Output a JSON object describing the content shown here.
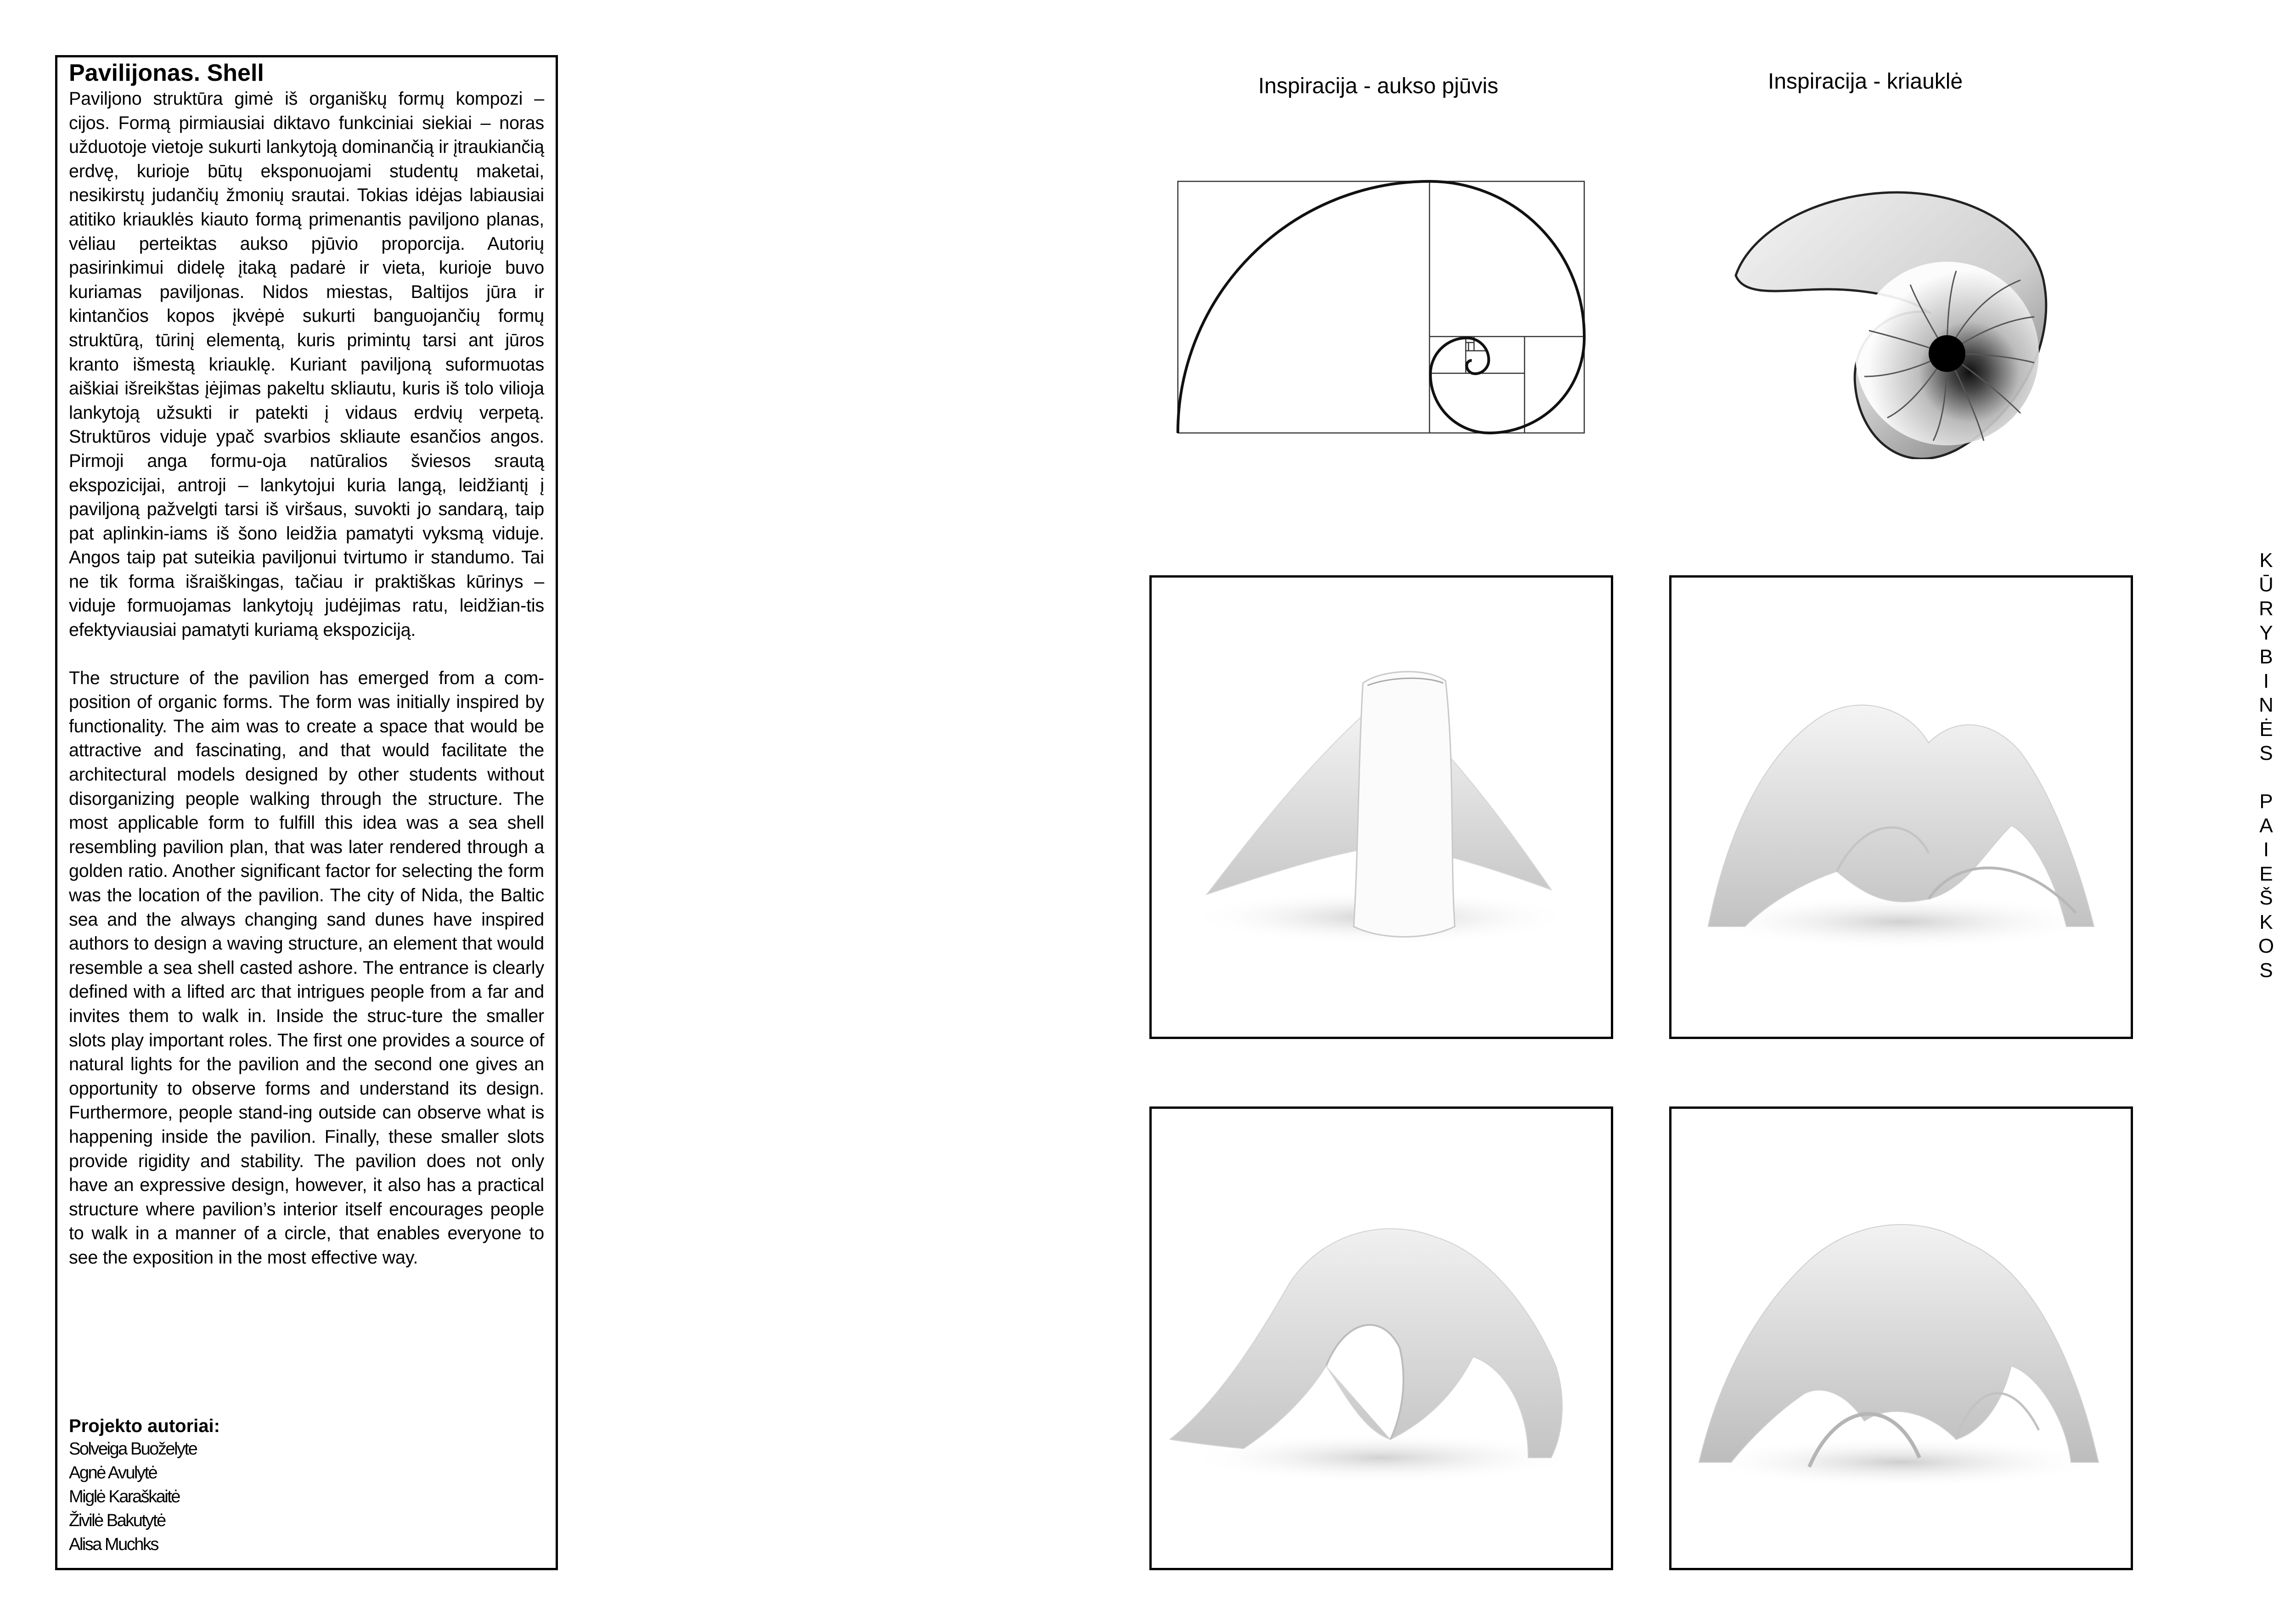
{
  "left_panel": {
    "title": "Pavilijonas. Shell",
    "paragraph_lt": "Paviljono struktūra gimė iš organiškų formų kompozi – cijos. Formą pirmiausiai diktavo funkciniai siekiai – noras užduotoje vietoje sukurti lankytoją dominančią ir įtraukiančią erdvę, kurioje būtų eksponuojami studentų maketai, nesikirstų judančių žmonių srautai. Tokias idėjas labiausiai atitiko kriauklės kiauto formą primenantis paviljono planas, vėliau perteiktas aukso pjūvio proporcija. Autorių pasirinkimui didelę įtaką padarė ir vieta, kurioje buvo kuriamas paviljonas. Nidos miestas, Baltijos jūra ir kintančios kopos įkvėpė sukurti banguojančių formų struktūrą, tūrinį elementą, kuris primintų tarsi ant jūros kranto išmestą kriauklę. Kuriant paviljoną suformuotas aiškiai išreikštas įėjimas pakeltu skliautu, kuris iš tolo vilioja lankytoją užsukti ir patekti į vidaus erdvių verpetą. Struktūros viduje ypač svarbios skliaute esančios angos. Pirmoji anga formu-oja natūralios šviesos srautą ekspozicijai, antroji – lankytojui kuria langą, leidžiantį į paviljoną pažvelgti tarsi iš viršaus, suvokti jo sandarą, taip pat aplinkin-iams iš šono leidžia pamatyti vyksmą viduje. Angos taip pat suteikia paviljonui tvirtumo ir standumo. Tai ne tik forma išraiškingas, tačiau ir praktiškas kūrinys – viduje formuojamas lankytojų judėjimas ratu, leidžian-tis efektyviausiai pamatyti kuriamą ekspoziciją.",
    "paragraph_en": "The structure of the pavilion has emerged from a com-position of organic forms. The form was initially inspired by functionality. The aim was to create a space that would be attractive and fascinating, and that would facilitate the architectural models designed by other students without disorganizing people walking through the structure. The most applicable form to fulfill this idea was a sea shell resembling pavilion plan, that was later rendered through a golden ratio. Another significant factor for selecting the form was the location of the pavilion. The city of Nida, the Baltic sea and the always changing sand dunes have inspired authors to design a waving structure, an element that would resemble a sea shell casted ashore. The entrance is clearly defined with a lifted arc that intrigues people from a far and invites them to walk in. Inside the struc-ture the smaller slots play important roles. The first one provides a source of natural lights for the pavilion and the second one gives an opportunity to observe forms and understand its design. Furthermore, people stand-ing outside can observe what is happening inside the pavilion. Finally, these smaller slots provide rigidity and stability. The pavilion does not only have an expressive design, however, it also has a practical structure where pavilion’s interior itself encourages people to walk in a manner of a circle, that enables everyone to see the exposition in the most effective way.",
    "authors_label": "Projekto autoriai:",
    "authors": [
      "Solveiga Buoželyte",
      "Agnė Avulytė",
      "Miglė Karaškaitė",
      "Živilė Bakutytė",
      "Alisa Muchks"
    ]
  },
  "figures": {
    "golden_caption": "Inspiracija - aukso pjūvis",
    "shell_caption": "Inspiracija - kriauklė"
  },
  "side_title": [
    "K",
    "Ū",
    "R",
    "Y",
    "B",
    "I",
    "N",
    "Ė",
    "S",
    "",
    "P",
    "A",
    "I",
    "E",
    "Š",
    "K",
    "O",
    "S"
  ]
}
